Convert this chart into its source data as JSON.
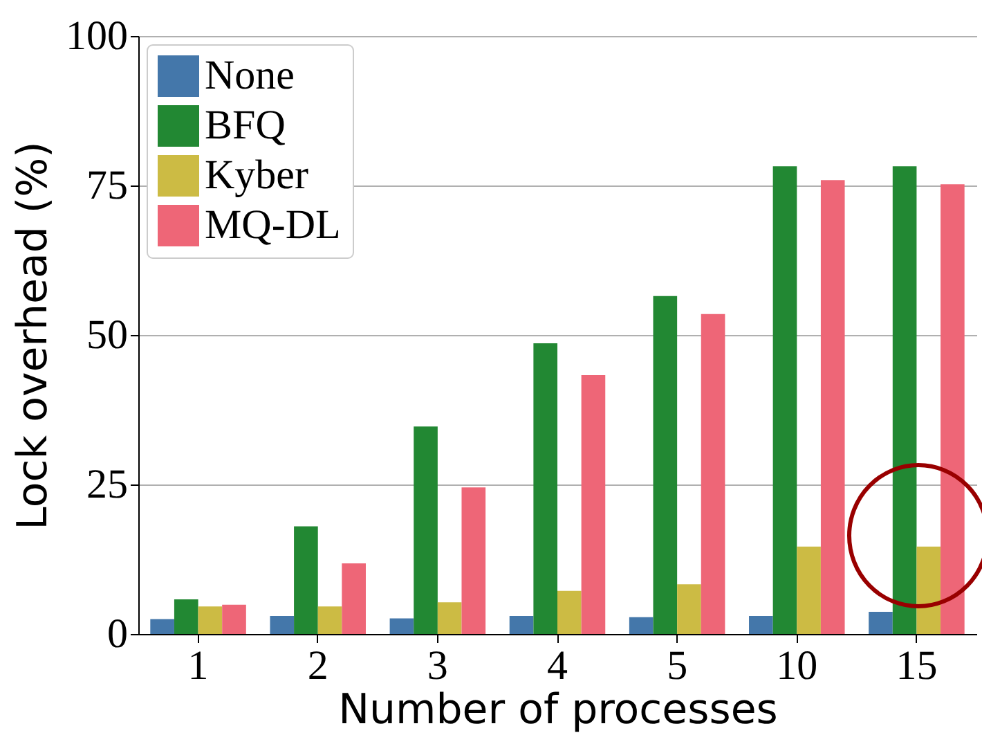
{
  "chart_data": {
    "type": "bar",
    "xlabel": "Number of processes",
    "ylabel": "Lock overhead (%)",
    "categories": [
      "1",
      "2",
      "3",
      "4",
      "5",
      "10",
      "15"
    ],
    "series": [
      {
        "name": "None",
        "color": "#4477aa",
        "values": [
          2.5,
          3.0,
          2.6,
          3.0,
          2.8,
          3.0,
          3.7
        ]
      },
      {
        "name": "BFQ",
        "color": "#228833",
        "values": [
          5.8,
          18,
          34.7,
          48.6,
          56.5,
          78.2,
          78.2
        ]
      },
      {
        "name": "Kyber",
        "color": "#ccbb44",
        "values": [
          4.6,
          4.6,
          5.3,
          7.2,
          8.3,
          14.6,
          14.6
        ]
      },
      {
        "name": "MQ-DL",
        "color": "#ee6677",
        "values": [
          4.9,
          11.8,
          24.5,
          43.3,
          53.5,
          75.9,
          75.2
        ]
      }
    ],
    "ylim": [
      0,
      100
    ],
    "yticks": [
      0,
      25,
      50,
      75,
      100
    ],
    "grid": "y",
    "legend": "top left"
  }
}
